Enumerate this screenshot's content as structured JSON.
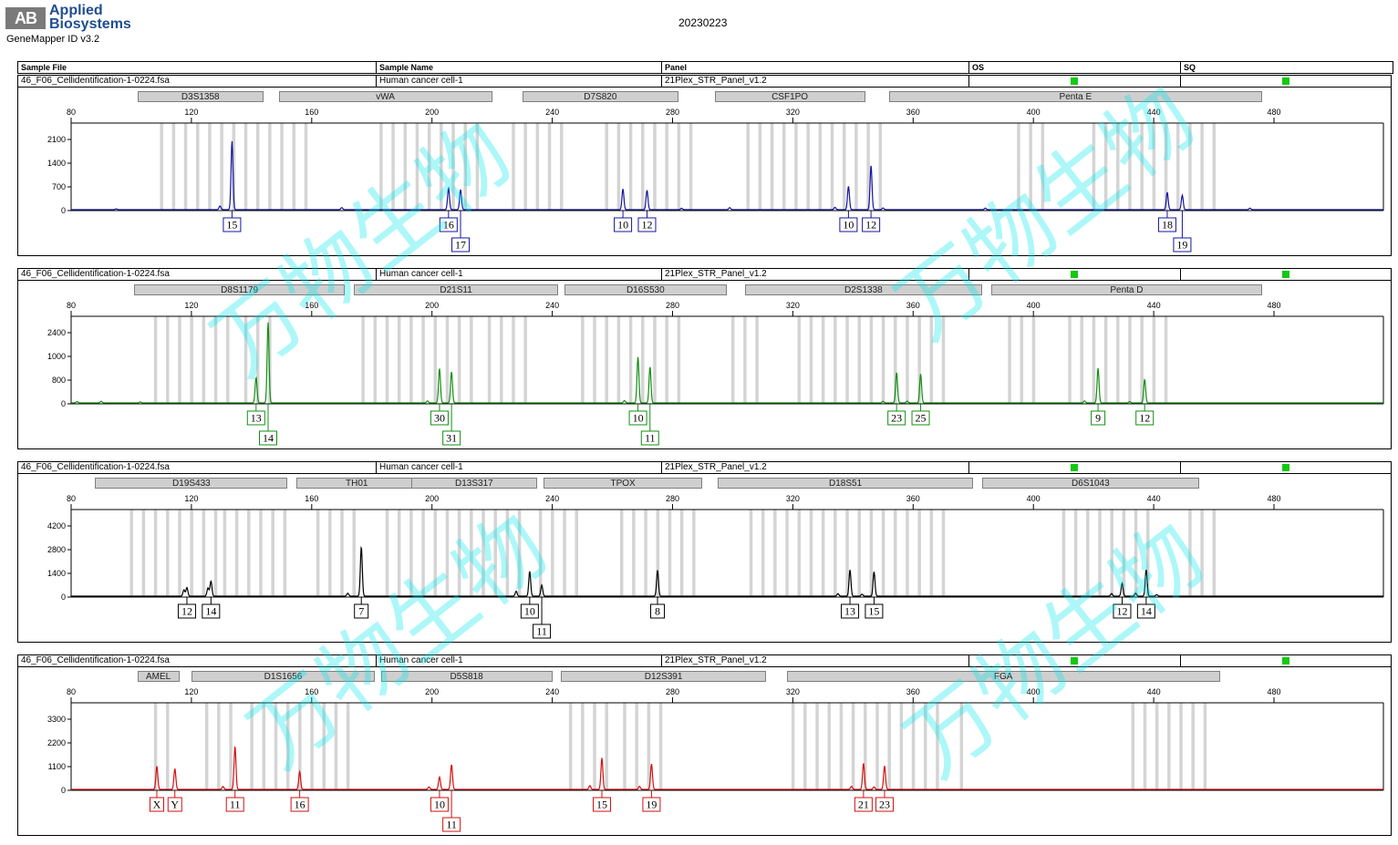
{
  "header": {
    "brand_line1": "Applied",
    "brand_line2": "Biosystems",
    "logo_letters": "AB",
    "software": "GeneMapper ID v3.2",
    "date": "20230223"
  },
  "columns": [
    "Sample File",
    "Sample Name",
    "Panel",
    "OS",
    "SQ"
  ],
  "watermark_text": "万物生物",
  "colors": {
    "blue": "#1414a0",
    "green": "#118f11",
    "black": "#000000",
    "red": "#d40f0f",
    "qc_green": "#13c913",
    "bin_gray": "#d4d4d4",
    "marker_gray": "#cfcfcf"
  },
  "x_ticks": [
    80,
    120,
    160,
    200,
    240,
    280,
    320,
    360,
    400,
    440,
    480
  ],
  "panels": [
    {
      "dye": "blue",
      "sample_file": "46_F06_Cellidentification-1-0224.fsa",
      "sample_name": "Human cancer cell-1",
      "panel": "21Plex_STR_Panel_v1.2",
      "y_ticks": [
        "2100",
        "1400",
        "700",
        "0"
      ],
      "ymax": 2450,
      "markers": [
        {
          "name": "D3S1358",
          "start": 102,
          "end": 144
        },
        {
          "name": "vWA",
          "start": 149,
          "end": 220
        },
        {
          "name": "D7S820",
          "start": 230,
          "end": 282
        },
        {
          "name": "CSF1PO",
          "start": 294,
          "end": 344
        },
        {
          "name": "Penta E",
          "start": 352,
          "end": 476
        }
      ],
      "bin_regions": [
        [
          110,
          131
        ],
        [
          134,
          160
        ],
        [
          183,
          218
        ],
        [
          227,
          244
        ],
        [
          258,
          287
        ],
        [
          305,
          350
        ],
        [
          395,
          405
        ],
        [
          420,
          461
        ]
      ],
      "peaks": [
        {
          "x": 133.5,
          "h": 2050,
          "allele": "15",
          "row": 0
        },
        {
          "x": 205.5,
          "h": 650,
          "allele": "16",
          "row": 0
        },
        {
          "x": 209.5,
          "h": 600,
          "allele": "17",
          "row": 1
        },
        {
          "x": 263.5,
          "h": 620,
          "allele": "10",
          "row": 0
        },
        {
          "x": 271.5,
          "h": 580,
          "allele": "12",
          "row": 0
        },
        {
          "x": 338.5,
          "h": 700,
          "allele": "10",
          "row": 0
        },
        {
          "x": 346,
          "h": 1320,
          "allele": "12",
          "row": 0
        },
        {
          "x": 444.5,
          "h": 520,
          "allele": "18",
          "row": 0
        },
        {
          "x": 449.5,
          "h": 430,
          "allele": "19",
          "row": 1
        }
      ],
      "minor_peaks": [
        {
          "x": 129.5,
          "h": 110
        },
        {
          "x": 170,
          "h": 60
        },
        {
          "x": 283,
          "h": 40
        },
        {
          "x": 299,
          "h": 60
        },
        {
          "x": 334,
          "h": 70
        },
        {
          "x": 350,
          "h": 50
        },
        {
          "x": 95,
          "h": 25
        },
        {
          "x": 384,
          "h": 45
        },
        {
          "x": 472,
          "h": 45
        }
      ]
    },
    {
      "dye": "green",
      "sample_file": "46_F06_Cellidentification-1-0224.fsa",
      "sample_name": "Human cancer cell-1",
      "panel": "21Plex_STR_Panel_v1.2",
      "y_ticks": [
        "2400",
        "1000",
        "800",
        "0"
      ],
      "ymax": 2500,
      "markers": [
        {
          "name": "D8S1179",
          "start": 101,
          "end": 171
        },
        {
          "name": "D21S11",
          "start": 174,
          "end": 242
        },
        {
          "name": "D16S530",
          "start": 244,
          "end": 298
        },
        {
          "name": "D2S1338",
          "start": 304,
          "end": 383
        },
        {
          "name": "Penta D",
          "start": 386,
          "end": 476
        }
      ],
      "bin_regions": [
        [
          108,
          135
        ],
        [
          138,
          148
        ],
        [
          177,
          216
        ],
        [
          219,
          233
        ],
        [
          250,
          283
        ],
        [
          300,
          310
        ],
        [
          322,
          370
        ],
        [
          392,
          400
        ],
        [
          412,
          444
        ]
      ],
      "peaks": [
        {
          "x": 141.5,
          "h": 780,
          "allele": "13",
          "row": 0
        },
        {
          "x": 145.5,
          "h": 2450,
          "allele": "14",
          "row": 1
        },
        {
          "x": 202.5,
          "h": 1050,
          "allele": "30",
          "row": 0
        },
        {
          "x": 206.5,
          "h": 950,
          "allele": "31",
          "row": 1
        },
        {
          "x": 268.5,
          "h": 1400,
          "allele": "10",
          "row": 0
        },
        {
          "x": 272.5,
          "h": 1100,
          "allele": "11",
          "row": 1
        },
        {
          "x": 354.5,
          "h": 930,
          "allele": "23",
          "row": 0
        },
        {
          "x": 362.5,
          "h": 880,
          "allele": "25",
          "row": 0
        },
        {
          "x": 421.5,
          "h": 1060,
          "allele": "9",
          "row": 0
        },
        {
          "x": 437,
          "h": 720,
          "allele": "12",
          "row": 0
        }
      ],
      "minor_peaks": [
        {
          "x": 82,
          "h": 40
        },
        {
          "x": 90,
          "h": 50
        },
        {
          "x": 103,
          "h": 30
        },
        {
          "x": 198.5,
          "h": 60
        },
        {
          "x": 264,
          "h": 70
        },
        {
          "x": 350,
          "h": 50
        },
        {
          "x": 358,
          "h": 55
        },
        {
          "x": 417,
          "h": 60
        },
        {
          "x": 432,
          "h": 40
        }
      ]
    },
    {
      "dye": "black",
      "sample_file": "46_F06_Cellidentification-1-0224.fsa",
      "sample_name": "Human cancer cell-1",
      "panel": "21Plex_STR_Panel_v1.2",
      "y_ticks": [
        "4200",
        "2800",
        "1400",
        "0"
      ],
      "ymax": 5000,
      "markers": [
        {
          "name": "D19S433",
          "start": 88,
          "end": 152
        },
        {
          "name": "TH01",
          "start": 155,
          "end": 195
        },
        {
          "name": "D13S317",
          "start": 193,
          "end": 235
        },
        {
          "name": "TPOX",
          "start": 237,
          "end": 290
        },
        {
          "name": "D18S51",
          "start": 295,
          "end": 380
        },
        {
          "name": "D6S1043",
          "start": 383,
          "end": 455
        }
      ],
      "bin_regions": [
        [
          100,
          130
        ],
        [
          131,
          152
        ],
        [
          162,
          176
        ],
        [
          185,
          232
        ],
        [
          236,
          248
        ],
        [
          263,
          290
        ],
        [
          306,
          370
        ],
        [
          410,
          438
        ],
        [
          452,
          462
        ]
      ],
      "peaks": [
        {
          "x": 118.5,
          "h": 520,
          "allele": "12",
          "row": 0
        },
        {
          "x": 126.5,
          "h": 920,
          "allele": "14",
          "row": 0
        },
        {
          "x": 176.5,
          "h": 3000,
          "allele": "7",
          "row": 0
        },
        {
          "x": 232.5,
          "h": 1520,
          "allele": "10",
          "row": 0
        },
        {
          "x": 236.5,
          "h": 680,
          "allele": "11",
          "row": 1
        },
        {
          "x": 275,
          "h": 1580,
          "allele": "8",
          "row": 0
        },
        {
          "x": 339,
          "h": 1600,
          "allele": "13",
          "row": 0
        },
        {
          "x": 347,
          "h": 1490,
          "allele": "15",
          "row": 0
        },
        {
          "x": 429.5,
          "h": 780,
          "allele": "12",
          "row": 0
        },
        {
          "x": 437.5,
          "h": 1620,
          "allele": "14",
          "row": 0
        }
      ],
      "minor_peaks": [
        {
          "x": 117.5,
          "h": 380
        },
        {
          "x": 125.5,
          "h": 500
        },
        {
          "x": 172,
          "h": 180
        },
        {
          "x": 228,
          "h": 300
        },
        {
          "x": 335,
          "h": 150
        },
        {
          "x": 343,
          "h": 120
        },
        {
          "x": 426,
          "h": 160
        },
        {
          "x": 434,
          "h": 180
        },
        {
          "x": 441,
          "h": 90
        }
      ]
    },
    {
      "dye": "red",
      "sample_file": "46_F06_Cellidentification-1-0224.fsa",
      "sample_name": "Human cancer cell-1",
      "panel": "21Plex_STR_Panel_v1.2",
      "y_ticks": [
        "3300",
        "2200",
        "1100",
        "0"
      ],
      "ymax": 3700,
      "markers": [
        {
          "name": "AMEL",
          "start": 102,
          "end": 116
        },
        {
          "name": "D1S1656",
          "start": 120,
          "end": 181
        },
        {
          "name": "D5S818",
          "start": 183,
          "end": 240
        },
        {
          "name": "D12S391",
          "start": 243,
          "end": 311
        },
        {
          "name": "FGA",
          "start": 318,
          "end": 462
        }
      ],
      "bin_regions": [
        [
          108,
          113
        ],
        [
          125,
          136
        ],
        [
          140,
          173
        ],
        [
          246,
          260
        ],
        [
          264,
          277
        ],
        [
          320,
          370
        ],
        [
          376,
          376
        ],
        [
          433,
          458
        ]
      ],
      "peaks": [
        {
          "x": 108.5,
          "h": 1050,
          "allele": "X",
          "row": 0
        },
        {
          "x": 114.5,
          "h": 930,
          "allele": "Y",
          "row": 0
        },
        {
          "x": 134.5,
          "h": 1930,
          "allele": "11",
          "row": 0
        },
        {
          "x": 156,
          "h": 800,
          "allele": "16",
          "row": 0
        },
        {
          "x": 202.5,
          "h": 560,
          "allele": "10",
          "row": 0
        },
        {
          "x": 206.5,
          "h": 1120,
          "allele": "11",
          "row": 1
        },
        {
          "x": 256.5,
          "h": 1420,
          "allele": "15",
          "row": 0
        },
        {
          "x": 273,
          "h": 1150,
          "allele": "19",
          "row": 0
        },
        {
          "x": 343.5,
          "h": 1180,
          "allele": "21",
          "row": 0
        },
        {
          "x": 350.5,
          "h": 1060,
          "allele": "23",
          "row": 0
        }
      ],
      "minor_peaks": [
        {
          "x": 130.5,
          "h": 130
        },
        {
          "x": 199,
          "h": 110
        },
        {
          "x": 252.5,
          "h": 170
        },
        {
          "x": 269,
          "h": 140
        },
        {
          "x": 339.5,
          "h": 140
        },
        {
          "x": 347,
          "h": 110
        }
      ]
    }
  ]
}
